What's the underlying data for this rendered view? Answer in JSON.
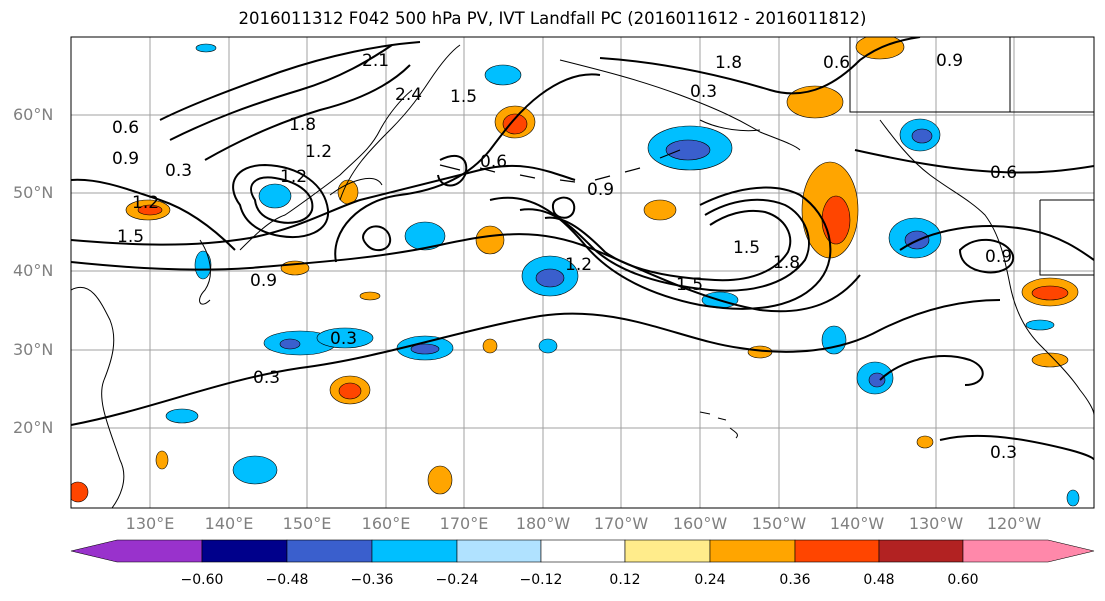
{
  "title": "2016011312 F042 500 hPa PV, IVT Landfall PC (2016011612 - 2016011812)",
  "lat_labels": [
    "60°N",
    "50°N",
    "40°N",
    "30°N",
    "20°N"
  ],
  "lon_labels": [
    "130°E",
    "140°E",
    "150°E",
    "160°E",
    "170°E",
    "180°W",
    "170°W",
    "160°W",
    "150°W",
    "140°W",
    "130°W",
    "120°W"
  ],
  "colorbar": {
    "tick_labels": [
      "−0.60",
      "−0.48",
      "−0.36",
      "−0.24",
      "−0.12",
      "0.12",
      "0.24",
      "0.36",
      "0.48",
      "0.60"
    ],
    "colors": [
      "#9932cc",
      "#00008b",
      "#3a5fcd",
      "#00bfff",
      "#b0e2ff",
      "#ffffff",
      "#ffec8b",
      "#ffa500",
      "#ff4500",
      "#b22222",
      "#ff88aa"
    ]
  },
  "contour_labels": [
    "0.3",
    "0.6",
    "0.9",
    "1.2",
    "1.5",
    "1.8",
    "2.1",
    "2.4"
  ],
  "colors": {
    "coast": "#000000",
    "grid": "#a0a0a0",
    "axis_text": "#808080"
  }
}
